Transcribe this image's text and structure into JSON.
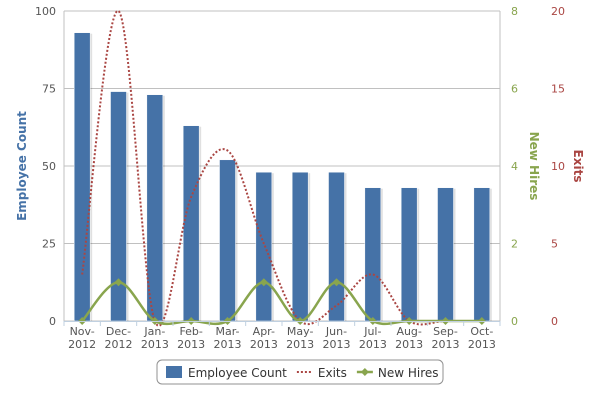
{
  "chart_data": {
    "type": "bar",
    "categories": [
      "Nov-2012",
      "Dec-2012",
      "Jan-2013",
      "Feb-2013",
      "Mar-2013",
      "Apr-2013",
      "May-2013",
      "Jun-2013",
      "Jul-2013",
      "Aug-2013",
      "Sep-2013",
      "Oct-2013"
    ],
    "series": [
      {
        "name": "Employee Count",
        "type": "bar",
        "axis": "left",
        "color": "#4572A7",
        "values": [
          93,
          74,
          73,
          63,
          52,
          48,
          48,
          48,
          43,
          43,
          43,
          43
        ]
      },
      {
        "name": "Exits",
        "type": "spline",
        "axis": "right-outer",
        "style": "dotted",
        "color": "#AA4643",
        "values": [
          3,
          20,
          0,
          8,
          11,
          5,
          0,
          1,
          3,
          0,
          0,
          0
        ]
      },
      {
        "name": "New Hires",
        "type": "spline",
        "axis": "right-inner",
        "marker": "diamond",
        "color": "#89A54E",
        "values": [
          0,
          1,
          0,
          0,
          0,
          1,
          0,
          1,
          0,
          0,
          0,
          0
        ]
      }
    ],
    "axes": {
      "left": {
        "title": "Employee Count",
        "min": 0,
        "max": 100,
        "ticks": [
          "0",
          "25",
          "50",
          "75",
          "100"
        ],
        "color": "#4572A7"
      },
      "right_inner": {
        "title": "New Hires",
        "min": 0,
        "max": 8,
        "ticks": [
          "0",
          "2",
          "4",
          "6",
          "8"
        ],
        "color": "#89A54E"
      },
      "right_outer": {
        "title": "Exits",
        "min": 0,
        "max": 20,
        "ticks": [
          "0",
          "5",
          "10",
          "15",
          "20"
        ],
        "color": "#AA4643"
      }
    },
    "grid": true,
    "legend": {
      "position": "bottom-center",
      "items": [
        "Employee Count",
        "Exits",
        "New Hires"
      ]
    }
  }
}
